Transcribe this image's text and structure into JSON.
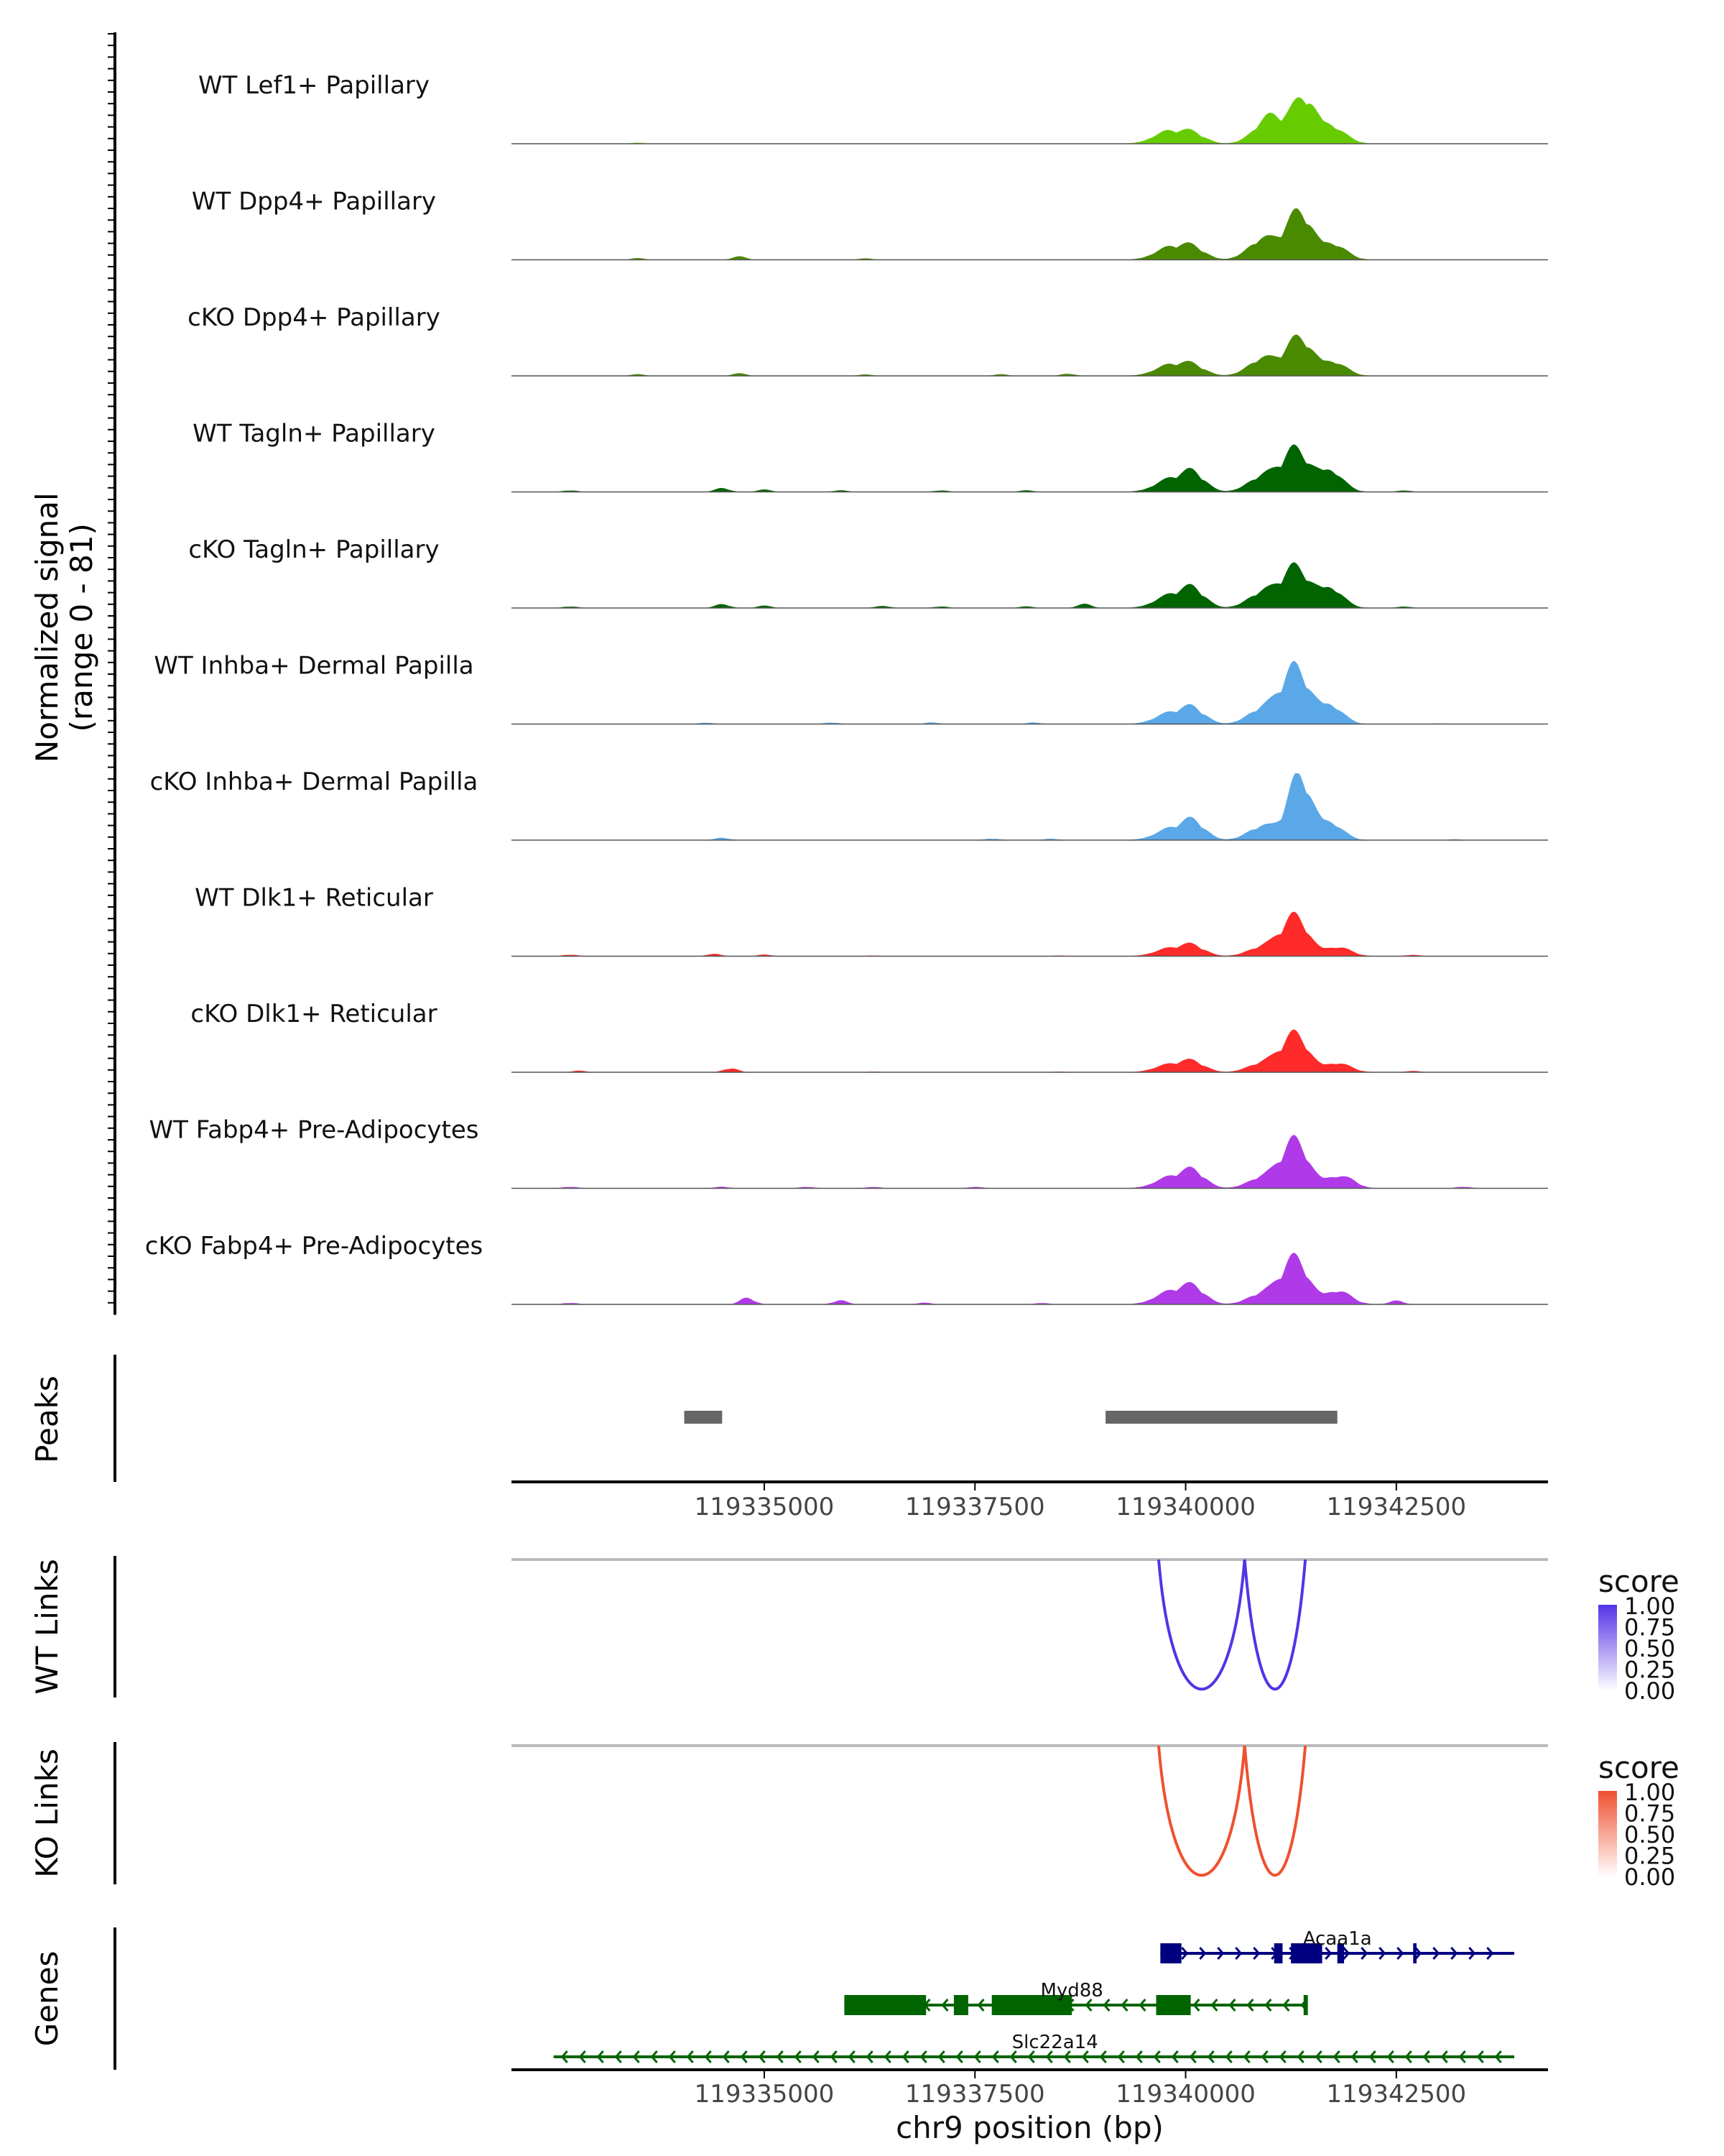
{
  "chart_data": {
    "type": "genome-browser",
    "region": {
      "chrom": "chr9",
      "start": 119332000,
      "end": 119344300
    },
    "coverage": {
      "ylabel_line1": "Normalized signal",
      "ylabel_line2": "(range 0 - 81)",
      "range": [
        0,
        81
      ],
      "tracks": [
        {
          "label": "WT Lef1+ Papillary",
          "color": "#66cc00",
          "peaks": [
            [
              119339780,
              16,
              250
            ],
            [
              119340100,
              12,
              200
            ],
            [
              119341000,
              34,
              260
            ],
            [
              119341400,
              52,
              200
            ],
            [
              119341700,
              24,
              250
            ]
          ],
          "bumps": [
            [
              119333500,
              1.2
            ]
          ]
        },
        {
          "label": "WT Dpp4+ Papillary",
          "color": "#4a8a00",
          "peaks": [
            [
              119339800,
              16,
              250
            ],
            [
              119340100,
              14,
              200
            ],
            [
              119340900,
              26,
              240
            ],
            [
              119341350,
              60,
              230
            ],
            [
              119341750,
              20,
              220
            ]
          ],
          "bumps": [
            [
              119333500,
              2
            ],
            [
              119334700,
              4
            ],
            [
              119336200,
              2
            ]
          ]
        },
        {
          "label": "cKO Dpp4+ Papillary",
          "color": "#4a8a00",
          "peaks": [
            [
              119339800,
              14,
              250
            ],
            [
              119340100,
              12,
              200
            ],
            [
              119340900,
              22,
              240
            ],
            [
              119341350,
              48,
              230
            ],
            [
              119341750,
              18,
              220
            ]
          ],
          "bumps": [
            [
              119333500,
              2
            ],
            [
              119334700,
              3
            ],
            [
              119336200,
              2
            ],
            [
              119337800,
              2
            ],
            [
              119338600,
              3
            ]
          ]
        },
        {
          "label": "WT Tagln+ Papillary",
          "color": "#006400",
          "peaks": [
            [
              119339800,
              16,
              250
            ],
            [
              119340100,
              22,
              200
            ],
            [
              119340900,
              20,
              240
            ],
            [
              119341300,
              52,
              230
            ],
            [
              119341700,
              30,
              220
            ]
          ],
          "bumps": [
            [
              119332700,
              2
            ],
            [
              119334500,
              5
            ],
            [
              119335000,
              3
            ],
            [
              119335900,
              2
            ],
            [
              119337100,
              2
            ],
            [
              119338100,
              2
            ],
            [
              119342600,
              2
            ]
          ]
        },
        {
          "label": "cKO Tagln+ Papillary",
          "color": "#006400",
          "peaks": [
            [
              119339800,
              16,
              250
            ],
            [
              119340100,
              22,
              200
            ],
            [
              119340900,
              20,
              240
            ],
            [
              119341300,
              50,
              230
            ],
            [
              119341700,
              28,
              220
            ]
          ],
          "bumps": [
            [
              119332700,
              2
            ],
            [
              119334500,
              5
            ],
            [
              119335000,
              3
            ],
            [
              119336400,
              3
            ],
            [
              119337100,
              2
            ],
            [
              119338100,
              2
            ],
            [
              119338800,
              5
            ],
            [
              119342600,
              2
            ]
          ]
        },
        {
          "label": "WT Inhba+ Dermal Papilla",
          "color": "#5aa8e8",
          "peaks": [
            [
              119339800,
              14,
              250
            ],
            [
              119340100,
              18,
              200
            ],
            [
              119340900,
              20,
              240
            ],
            [
              119341300,
              70,
              230
            ],
            [
              119341700,
              26,
              220
            ]
          ],
          "bumps": [
            [
              119334300,
              2
            ],
            [
              119335800,
              2
            ],
            [
              119337000,
              2
            ],
            [
              119338200,
              2
            ],
            [
              119343000,
              1
            ]
          ]
        },
        {
          "label": "cKO Inhba+ Dermal Papilla",
          "color": "#5aa8e8",
          "peaks": [
            [
              119339800,
              14,
              250
            ],
            [
              119340100,
              22,
              200
            ],
            [
              119340900,
              18,
              240
            ],
            [
              119341350,
              80,
              200
            ],
            [
              119341700,
              24,
              220
            ]
          ],
          "bumps": [
            [
              119334500,
              3
            ],
            [
              119337700,
              2
            ],
            [
              119338400,
              2
            ],
            [
              119343200,
              1
            ]
          ]
        },
        {
          "label": "WT Dlk1+ Reticular",
          "color": "#ff2a2a",
          "peaks": [
            [
              119339800,
              10,
              250
            ],
            [
              119340100,
              12,
              200
            ],
            [
              119340900,
              12,
              240
            ],
            [
              119341300,
              50,
              230
            ],
            [
              119341800,
              12,
              220
            ]
          ],
          "bumps": [
            [
              119332700,
              2
            ],
            [
              119334400,
              3
            ],
            [
              119335000,
              2
            ],
            [
              119336300,
              1
            ],
            [
              119338500,
              1
            ],
            [
              119342700,
              2
            ]
          ]
        },
        {
          "label": "cKO Dlk1+ Reticular",
          "color": "#ff2a2a",
          "peaks": [
            [
              119339800,
              10,
              250
            ],
            [
              119340100,
              12,
              200
            ],
            [
              119340900,
              12,
              240
            ],
            [
              119341300,
              48,
              230
            ],
            [
              119341800,
              12,
              220
            ]
          ],
          "bumps": [
            [
              119332800,
              2
            ],
            [
              119334600,
              5
            ],
            [
              119336300,
              1
            ],
            [
              119338500,
              1
            ],
            [
              119342700,
              2
            ]
          ]
        },
        {
          "label": "WT Fabp4+ Pre-Adipocytes",
          "color": "#b03ae8",
          "peaks": [
            [
              119339800,
              14,
              250
            ],
            [
              119340100,
              20,
              200
            ],
            [
              119340900,
              14,
              240
            ],
            [
              119341300,
              60,
              230
            ],
            [
              119341800,
              16,
              220
            ]
          ],
          "bumps": [
            [
              119332700,
              2
            ],
            [
              119334500,
              2
            ],
            [
              119335500,
              2
            ],
            [
              119336300,
              2
            ],
            [
              119337500,
              2
            ],
            [
              119342000,
              3
            ],
            [
              119343300,
              2
            ]
          ]
        },
        {
          "label": "cKO Fabp4+ Pre-Adipocytes",
          "color": "#b03ae8",
          "peaks": [
            [
              119339800,
              16,
              250
            ],
            [
              119340100,
              20,
              200
            ],
            [
              119340900,
              14,
              240
            ],
            [
              119341300,
              58,
              230
            ],
            [
              119341800,
              18,
              220
            ]
          ],
          "bumps": [
            [
              119332700,
              2
            ],
            [
              119334800,
              8
            ],
            [
              119335900,
              5
            ],
            [
              119336900,
              2
            ],
            [
              119338300,
              2
            ],
            [
              119342500,
              5
            ]
          ]
        }
      ]
    },
    "peaks": {
      "label": "Peaks",
      "intervals": [
        [
          119334050,
          119334500
        ],
        [
          119339050,
          119341800
        ]
      ]
    },
    "links": [
      {
        "label": "WT Links",
        "legend_title": "score",
        "color": "#5533e6",
        "legend_ticks": [
          "1.00",
          "0.75",
          "0.50",
          "0.25",
          "0.00"
        ],
        "arcs": [
          [
            119339680,
            119340700
          ],
          [
            119340700,
            119341420
          ]
        ]
      },
      {
        "label": "KO Links",
        "legend_title": "score",
        "color": "#f05030",
        "legend_ticks": [
          "1.00",
          "0.75",
          "0.50",
          "0.25",
          "0.00"
        ],
        "arcs": [
          [
            119339680,
            119340700
          ],
          [
            119340700,
            119341420
          ]
        ]
      }
    ],
    "genes": {
      "label": "Genes",
      "items": [
        {
          "name": "Acaa1a",
          "color": "#000080",
          "strand": "+",
          "start": 119339700,
          "end": 119343900,
          "exons": [
            [
              119339700,
              119339950
            ],
            [
              119341050,
              119341150
            ],
            [
              119341250,
              119341620
            ],
            [
              119341800,
              119341880
            ],
            [
              119342700,
              119342740
            ]
          ],
          "row": 0
        },
        {
          "name": "Myd88",
          "color": "#006400",
          "strand": "-",
          "start": 119335950,
          "end": 119341450,
          "exons": [
            [
              119335950,
              119336920
            ],
            [
              119337250,
              119337420
            ],
            [
              119337700,
              119338650
            ],
            [
              119339650,
              119340060
            ],
            [
              119341400,
              119341450
            ]
          ],
          "row": 1
        },
        {
          "name": "Slc22a14",
          "color": "#006400",
          "strand": "-",
          "start": 119332500,
          "end": 119343900,
          "exons": [],
          "row": 2
        }
      ]
    },
    "xaxis": {
      "ticks": [
        119335000,
        119337500,
        119340000,
        119342500
      ],
      "xlabel": "chr9 position (bp)"
    }
  }
}
